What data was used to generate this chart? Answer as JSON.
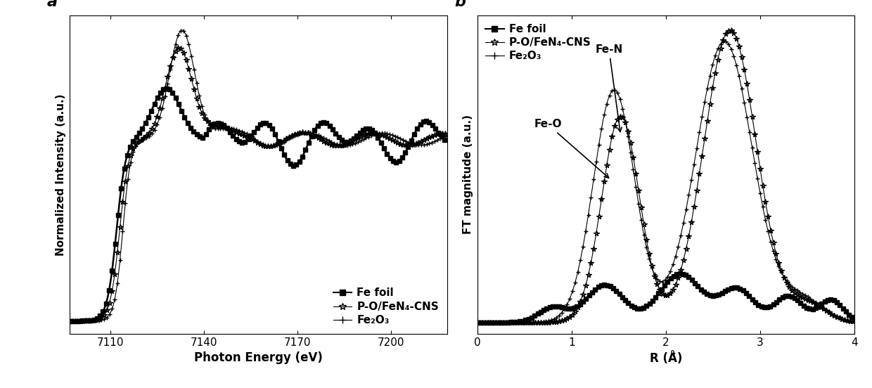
{
  "panel_a": {
    "xlabel": "Photon Energy (eV)",
    "ylabel": "Normalized Intensity (a.u.)",
    "xlim": [
      7097,
      7218
    ],
    "xticks": [
      7110,
      7140,
      7170,
      7200
    ],
    "legend": [
      "Fe foil",
      "P-O/FeN₄-CNS",
      "Fe₂O₃"
    ]
  },
  "panel_b": {
    "xlabel": "R (Å̇)",
    "ylabel": "FT magnitude (a.u.)",
    "xlim": [
      0,
      4
    ],
    "xticks": [
      0,
      1,
      2,
      3,
      4
    ],
    "legend": [
      "Fe foil",
      "P-O/FeN₄-CNS",
      "Fe₂O₃"
    ]
  }
}
